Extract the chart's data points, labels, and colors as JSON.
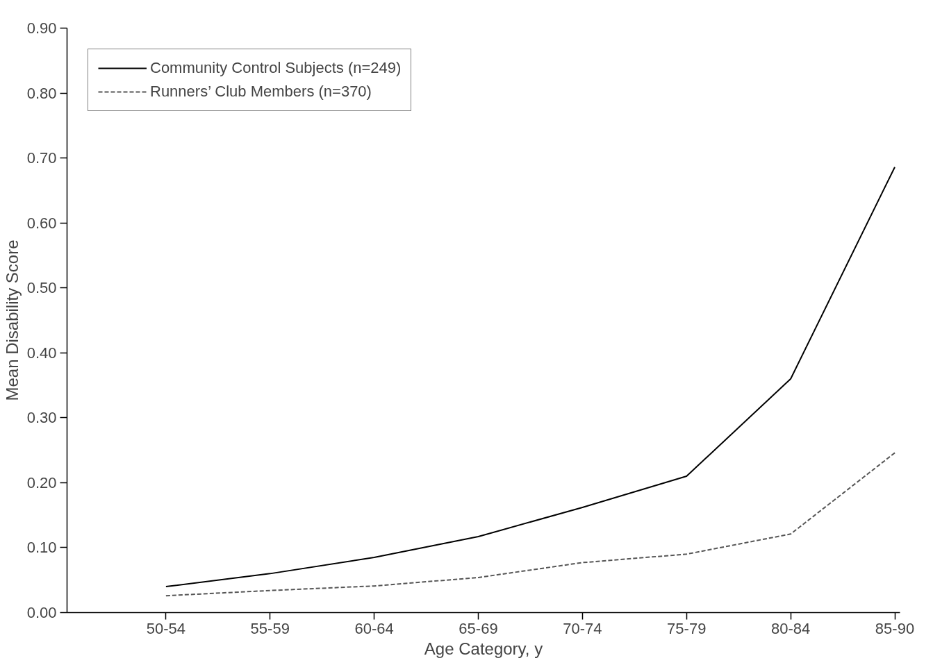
{
  "chart_data": {
    "type": "line",
    "xlabel": "Age Category, y",
    "ylabel": "Mean Disability Score",
    "categories": [
      "50-54",
      "55-59",
      "60-64",
      "65-69",
      "70-74",
      "75-79",
      "80-84",
      "85-90"
    ],
    "series": [
      {
        "name": "Community Control Subjects (n=249)",
        "color": "#000000",
        "line_style": "solid",
        "values": [
          0.04,
          0.06,
          0.085,
          0.117,
          0.162,
          0.21,
          0.36,
          0.686
        ]
      },
      {
        "name": "Runners’ Club Members (n=370)",
        "color": "#555555",
        "line_style": "dashed",
        "values": [
          0.026,
          0.034,
          0.041,
          0.054,
          0.077,
          0.09,
          0.121,
          0.246
        ]
      }
    ],
    "ylim": [
      0,
      0.9
    ],
    "yticks": [
      {
        "value": 0,
        "label": "0.00"
      },
      {
        "value": 0.1,
        "label": "0.10"
      },
      {
        "value": 0.2,
        "label": "0.20"
      },
      {
        "value": 0.3,
        "label": "0.30"
      },
      {
        "value": 0.4,
        "label": "0.40"
      },
      {
        "value": 0.5,
        "label": "0.50"
      },
      {
        "value": 0.6,
        "label": "0.60"
      },
      {
        "value": 0.7,
        "label": "0.70"
      },
      {
        "value": 0.8,
        "label": "0.80"
      },
      {
        "value": 0.9,
        "label": "0.90"
      }
    ],
    "grid": false,
    "legend": "top left",
    "marker": "none"
  }
}
